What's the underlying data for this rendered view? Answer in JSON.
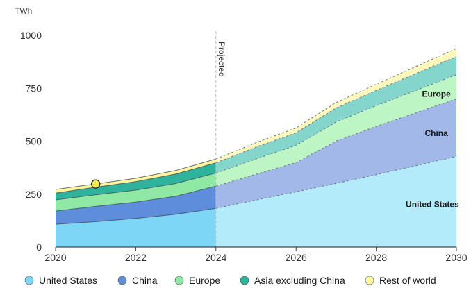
{
  "chart_data": {
    "type": "area",
    "stacked": true,
    "unit_label": "TWh",
    "projection_label": "Projected",
    "projection_start": 2024,
    "x": [
      2020,
      2021,
      2022,
      2023,
      2024,
      2025,
      2026,
      2027,
      2028,
      2029,
      2030
    ],
    "ylim": [
      0,
      1000
    ],
    "yticks": [
      0,
      250,
      500,
      750,
      1000
    ],
    "xticks": [
      2020,
      2022,
      2024,
      2026,
      2028,
      2030
    ],
    "grid": false,
    "legend_position": "bottom",
    "series": [
      {
        "name": "United States",
        "color": "#7dd6f5",
        "projected_color": "#b3ebfb",
        "area_label": "United States",
        "values": [
          108,
          120,
          135,
          155,
          183,
          222,
          261,
          301,
          342,
          385,
          428
        ]
      },
      {
        "name": "China",
        "color": "#5e8ddc",
        "projected_color": "#a1b8e8",
        "area_label": "China",
        "values": [
          62,
          72,
          77,
          85,
          105,
          122,
          138,
          200,
          228,
          250,
          272
        ]
      },
      {
        "name": "Europe",
        "color": "#8fe8a3",
        "projected_color": "#bdf5c4",
        "area_label": "Europe",
        "values": [
          53,
          55,
          57,
          60,
          62,
          72,
          81,
          90,
          98,
          106,
          114
        ]
      },
      {
        "name": "Asia excluding China",
        "color": "#2fb39c",
        "projected_color": "#84d5cc",
        "area_label": "",
        "values": [
          32,
          36,
          40,
          45,
          48,
          56,
          60,
          66,
          72,
          80,
          86
        ]
      },
      {
        "name": "Rest of world",
        "color": "#fff59a",
        "projected_color": "#fff8bd",
        "area_label": "",
        "values": [
          17,
          15,
          16,
          17,
          18,
          21,
          23,
          26,
          29,
          33,
          38
        ]
      }
    ],
    "marker": {
      "x": 2021,
      "y": 298,
      "color": "#f3e94d"
    }
  }
}
